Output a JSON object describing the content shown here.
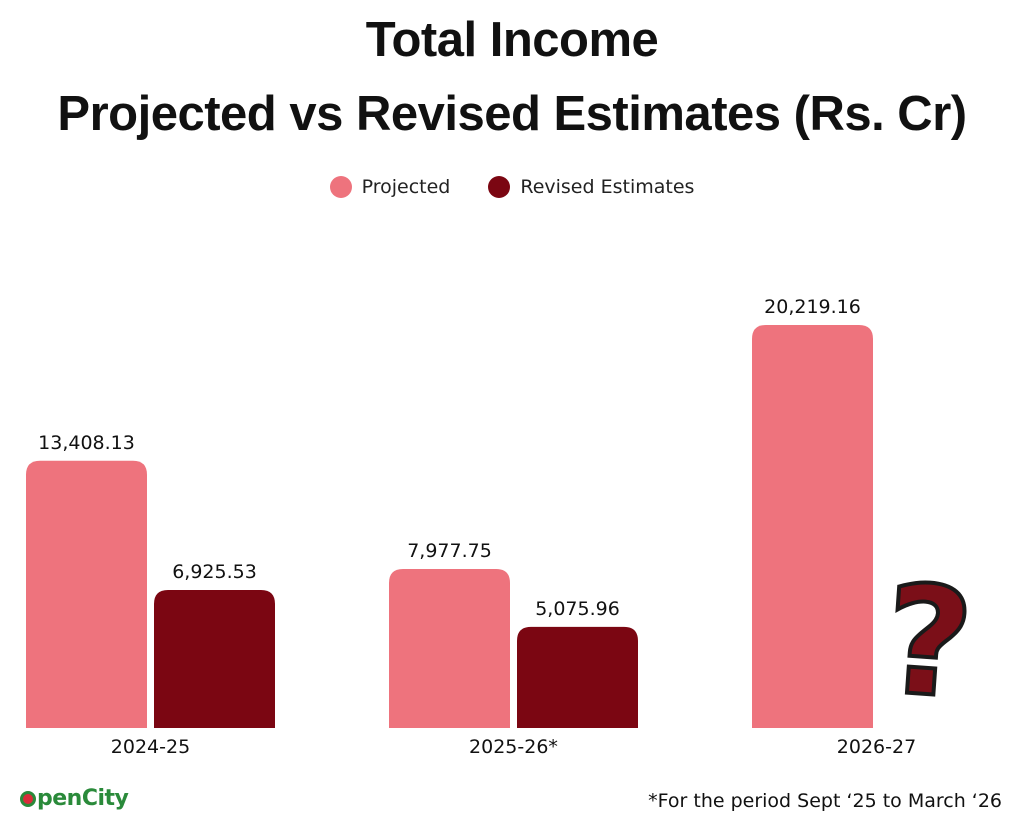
{
  "chart_data": {
    "type": "bar",
    "title_line1": "Total Income",
    "title_line2": "Projected vs Revised Estimates (Rs. Cr)",
    "categories": [
      "2024-25",
      "2025-26*",
      "2026-27"
    ],
    "series": [
      {
        "name": "Projected",
        "color": "#ee737d",
        "values": [
          13408.13,
          7977.75,
          20219.16
        ],
        "labels": [
          "13,408.13",
          "7,977.75",
          "20,219.16"
        ]
      },
      {
        "name": "Revised Estimates",
        "color": "#7b0612",
        "values": [
          6925.53,
          5075.96,
          null
        ],
        "labels": [
          "6,925.53",
          "5,075.96",
          ""
        ]
      }
    ],
    "ylim": [
      0,
      20219.16
    ],
    "missing_value_marker": "?",
    "legend_position": "top-center"
  },
  "footer": {
    "logo_text": "penCity",
    "footnote": "*For the period Sept ‘25 to March ‘26"
  },
  "colors": {
    "projected": "#ee737d",
    "revised": "#7b0612"
  }
}
